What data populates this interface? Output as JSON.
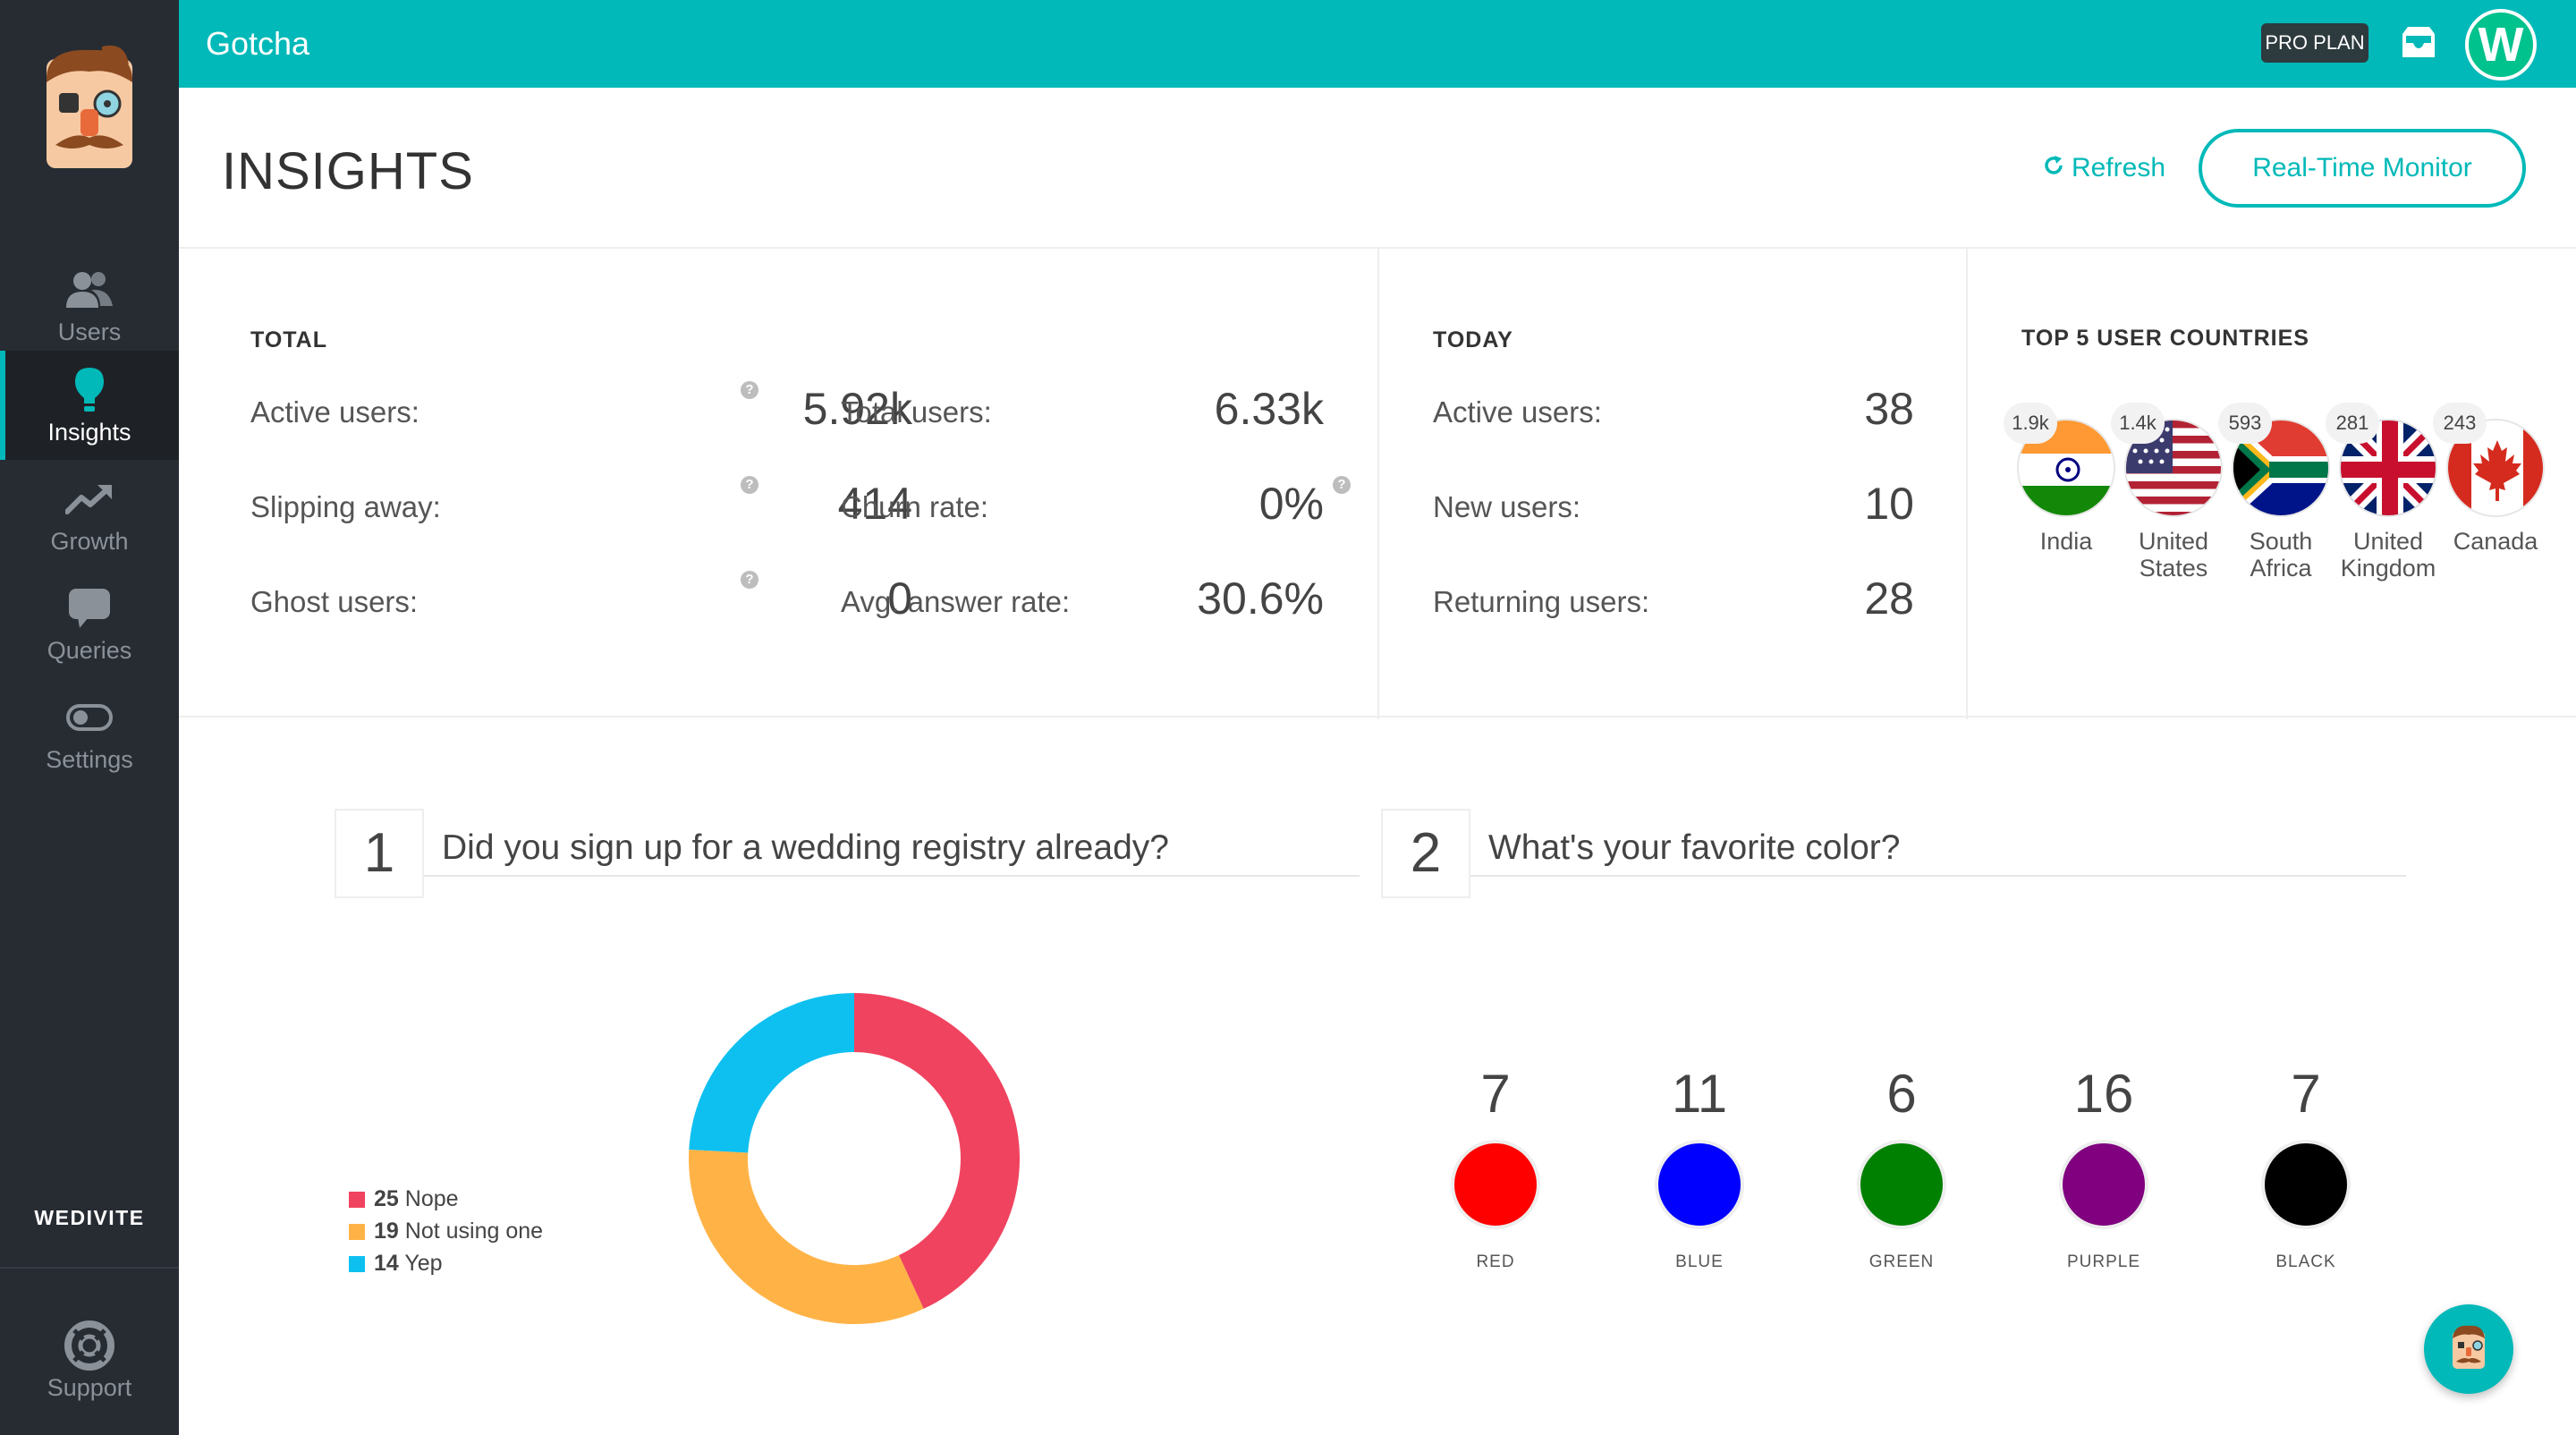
{
  "app": {
    "name": "Gotcha"
  },
  "header": {
    "plan_badge": "PRO PLAN",
    "avatar_initial": "W"
  },
  "sidebar": {
    "items": [
      {
        "label": "Users",
        "icon": "users-icon"
      },
      {
        "label": "Insights",
        "icon": "lightbulb-icon",
        "active": true
      },
      {
        "label": "Growth",
        "icon": "trend-up-icon"
      },
      {
        "label": "Queries",
        "icon": "chat-bubble-icon"
      },
      {
        "label": "Settings",
        "icon": "toggle-icon"
      }
    ],
    "team_name": "WEDIVITE",
    "support_label": "Support"
  },
  "page": {
    "title": "INSIGHTS",
    "refresh_label": "Refresh",
    "realtime_label": "Real-Time Monitor"
  },
  "total": {
    "title": "TOTAL",
    "stats": [
      {
        "label": "Active users:",
        "value": "5.92k"
      },
      {
        "label": "Slipping away:",
        "value": "414"
      },
      {
        "label": "Ghost users:",
        "value": "0"
      },
      {
        "label": "Total users:",
        "value": "6.33k"
      },
      {
        "label": "Churn rate:",
        "value": "0%"
      },
      {
        "label": "Avg. answer rate:",
        "value": "30.6%"
      }
    ],
    "help_glyph": "?"
  },
  "today": {
    "title": "TODAY",
    "stats": [
      {
        "label": "Active users:",
        "value": "38"
      },
      {
        "label": "New users:",
        "value": "10"
      },
      {
        "label": "Returning users:",
        "value": "28"
      }
    ]
  },
  "countries": {
    "title": "TOP 5 USER COUNTRIES",
    "items": [
      {
        "name_line1": "India",
        "name_line2": "",
        "count": "1.9k"
      },
      {
        "name_line1": "United",
        "name_line2": "States",
        "count": "1.4k"
      },
      {
        "name_line1": "South",
        "name_line2": "Africa",
        "count": "593"
      },
      {
        "name_line1": "United",
        "name_line2": "Kingdom",
        "count": "281"
      },
      {
        "name_line1": "Canada",
        "name_line2": "",
        "count": "243"
      }
    ]
  },
  "questions": [
    {
      "number": "1",
      "text": "Did you sign up for a wedding registry already?"
    },
    {
      "number": "2",
      "text": "What's your favorite color?"
    }
  ],
  "chart_data": [
    {
      "type": "pie",
      "donut": true,
      "title": "Did you sign up for a wedding registry already?",
      "categories": [
        "Nope",
        "Not using one",
        "Yep"
      ],
      "values": [
        25,
        19,
        14
      ],
      "colors": [
        "#f0435f",
        "#ffb347",
        "#0ec0f0"
      ],
      "legend_placement": "left"
    },
    {
      "type": "table",
      "title": "What's your favorite color?",
      "categories": [
        "RED",
        "BLUE",
        "GREEN",
        "PURPLE",
        "BLACK"
      ],
      "values": [
        7,
        11,
        6,
        16,
        7
      ],
      "colors": [
        "#ff0000",
        "#0000ff",
        "#008000",
        "#800080",
        "#000000"
      ]
    }
  ],
  "colors": {
    "accent": "#00b9b8",
    "sidebar": "#272c33"
  }
}
